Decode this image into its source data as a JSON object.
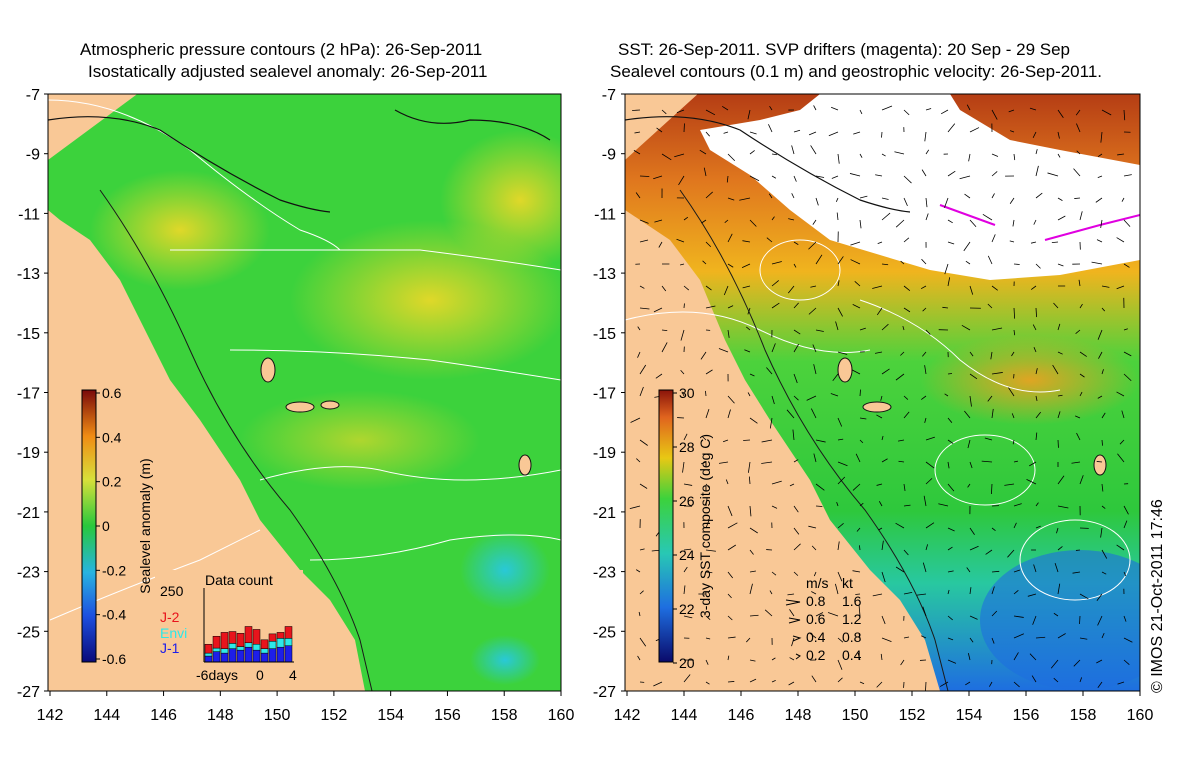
{
  "left_panel": {
    "title_line1": "Atmospheric pressure contours (2 hPa): 26-Sep-2011",
    "title_line2": "Isostatically adjusted sealevel anomaly: 26-Sep-2011",
    "y_ticks": [
      "-7",
      "-9",
      "-11",
      "-13",
      "-15",
      "-17",
      "-19",
      "-21",
      "-23",
      "-25",
      "-27"
    ],
    "x_ticks": [
      "142",
      "144",
      "146",
      "148",
      "150",
      "152",
      "154",
      "156",
      "158",
      "160"
    ],
    "colorbar": {
      "label": "Sealevel anomaly (m)",
      "ticks": [
        "0.6",
        "0.4",
        "0.2",
        "0",
        "-0.2",
        "-0.4",
        "-0.6"
      ],
      "range": [
        -0.6,
        0.6
      ]
    },
    "data_count": {
      "title": "Data count",
      "ymax_label": "250",
      "x_labels": [
        "-6days",
        "0",
        "4"
      ],
      "legend": [
        {
          "name": "J-2",
          "color": "#e8141c"
        },
        {
          "name": "Envi",
          "color": "#2ee8e8"
        },
        {
          "name": "J-1",
          "color": "#1e1ee8"
        }
      ],
      "bars": [
        {
          "j1": 20,
          "envi": 10,
          "j2": 30
        },
        {
          "j1": 35,
          "envi": 12,
          "j2": 40
        },
        {
          "j1": 30,
          "envi": 15,
          "j2": 55
        },
        {
          "j1": 45,
          "envi": 18,
          "j2": 40
        },
        {
          "j1": 40,
          "envi": 12,
          "j2": 45
        },
        {
          "j1": 50,
          "envi": 15,
          "j2": 55
        },
        {
          "j1": 40,
          "envi": 20,
          "j2": 50
        },
        {
          "j1": 30,
          "envi": 15,
          "j2": 30
        },
        {
          "j1": 45,
          "envi": 25,
          "j2": 25
        },
        {
          "j1": 50,
          "envi": 30,
          "j2": 20
        },
        {
          "j1": 55,
          "envi": 25,
          "j2": 40
        }
      ]
    }
  },
  "right_panel": {
    "title_line1": "SST: 26-Sep-2011. SVP drifters (magenta): 20 Sep - 29 Sep",
    "title_line2": "Sealevel contours (0.1 m) and geostrophic velocity: 26-Sep-2011.",
    "y_ticks": [
      "-7",
      "-9",
      "-11",
      "-13",
      "-15",
      "-17",
      "-19",
      "-21",
      "-23",
      "-25",
      "-27"
    ],
    "x_ticks": [
      "142",
      "144",
      "146",
      "148",
      "150",
      "152",
      "154",
      "156",
      "158",
      "160"
    ],
    "colorbar": {
      "label": "3-day SST composite (deg C)",
      "ticks": [
        "30",
        "28",
        "26",
        "24",
        "22",
        "20"
      ],
      "range": [
        20,
        30
      ]
    },
    "velocity_legend": {
      "header_ms": "m/s",
      "header_kt": "kt",
      "rows": [
        {
          "ms": "0.8",
          "kt": "1.6"
        },
        {
          "ms": "0.6",
          "kt": "1.2"
        },
        {
          "ms": "0.4",
          "kt": "0.8"
        },
        {
          "ms": "0.2",
          "kt": "0.4"
        }
      ]
    },
    "copyright": "© IMOS 21-Oct-2011 17:46"
  },
  "colors": {
    "land": "#f9c896",
    "sla_green": "#3cd23c",
    "sla_yellow": "#d8e03a",
    "sst_green": "#2ec83c",
    "sst_blue": "#2090e0",
    "sst_orange": "#f0a020",
    "sst_red": "#b43c14"
  }
}
